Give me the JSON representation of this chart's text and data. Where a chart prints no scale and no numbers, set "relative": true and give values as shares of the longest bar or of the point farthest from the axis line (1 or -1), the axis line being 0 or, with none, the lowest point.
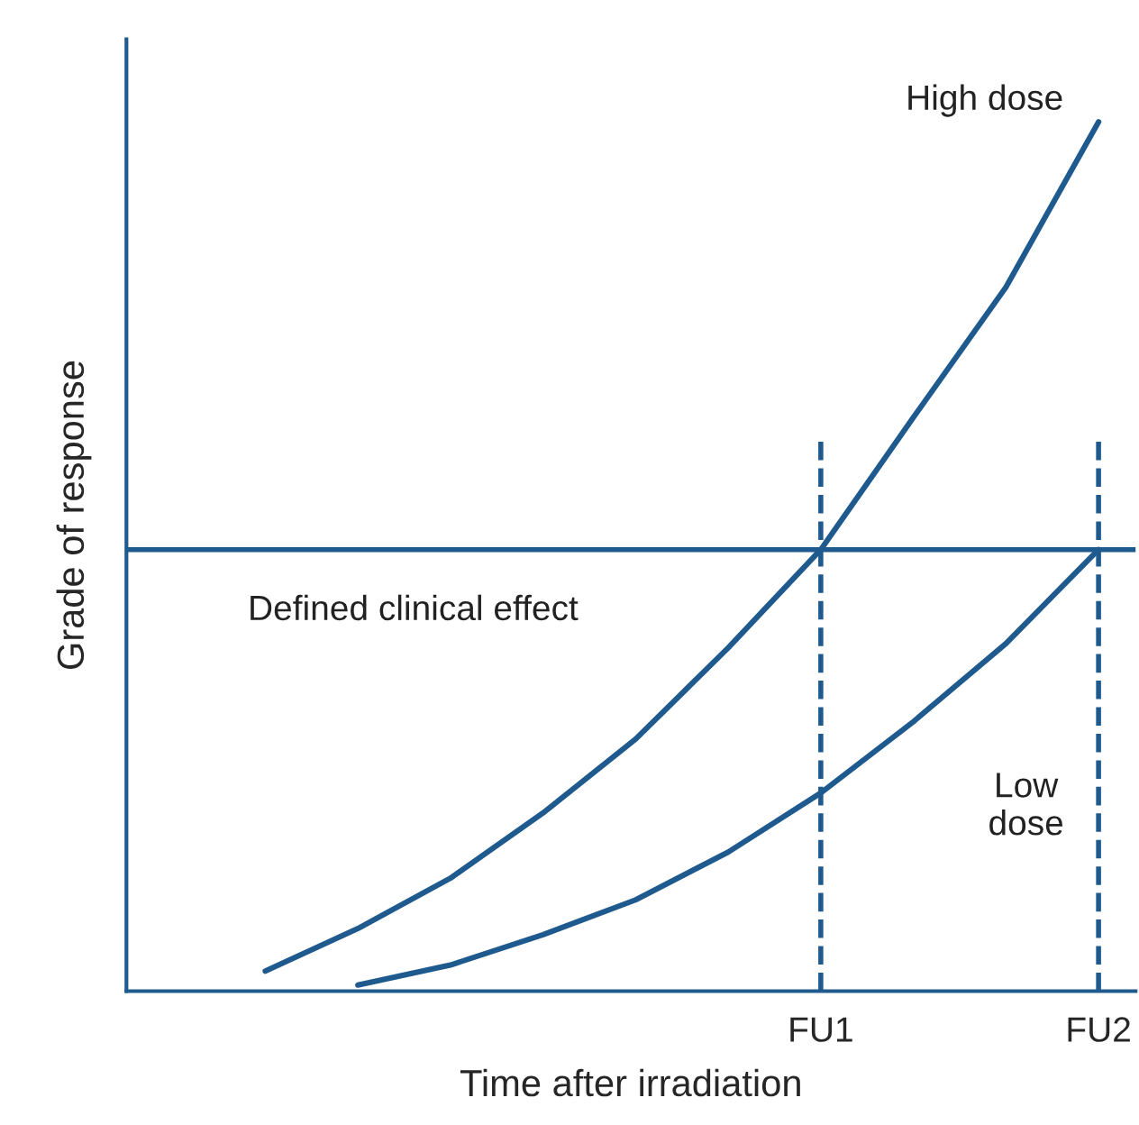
{
  "chart_data": {
    "type": "line",
    "relative": true,
    "xlabel": "Time after irradiation",
    "ylabel": "Grade of response",
    "categories": [
      null,
      null,
      null,
      null,
      null,
      null,
      null,
      "FU1",
      null,
      null,
      "FU2"
    ],
    "series": [
      {
        "name": "High dose",
        "color": "#1f5a8f",
        "values": [
          null,
          0.023,
          0.072,
          0.13,
          0.205,
          0.29,
          0.395,
          0.508,
          0.66,
          0.81,
          1
        ]
      },
      {
        "name": "Low dose",
        "color": "#1f5a8f",
        "values": [
          null,
          null,
          0.007,
          0.03,
          0.065,
          0.105,
          0.16,
          0.228,
          0.31,
          0.4,
          0.508
        ]
      }
    ],
    "ref_lines": [
      {
        "axis": "y",
        "value": 0.508,
        "label": "Defined clinical effect",
        "color": "#1f5a8f",
        "line_style": "solid"
      },
      {
        "axis": "x",
        "value": "FU1",
        "color": "#1f5a8f",
        "line_style": "dashed"
      },
      {
        "axis": "x",
        "value": "FU2",
        "color": "#1f5a8f",
        "line_style": "dashed"
      }
    ],
    "marker": "none",
    "line_style": "solid",
    "grid": false
  }
}
